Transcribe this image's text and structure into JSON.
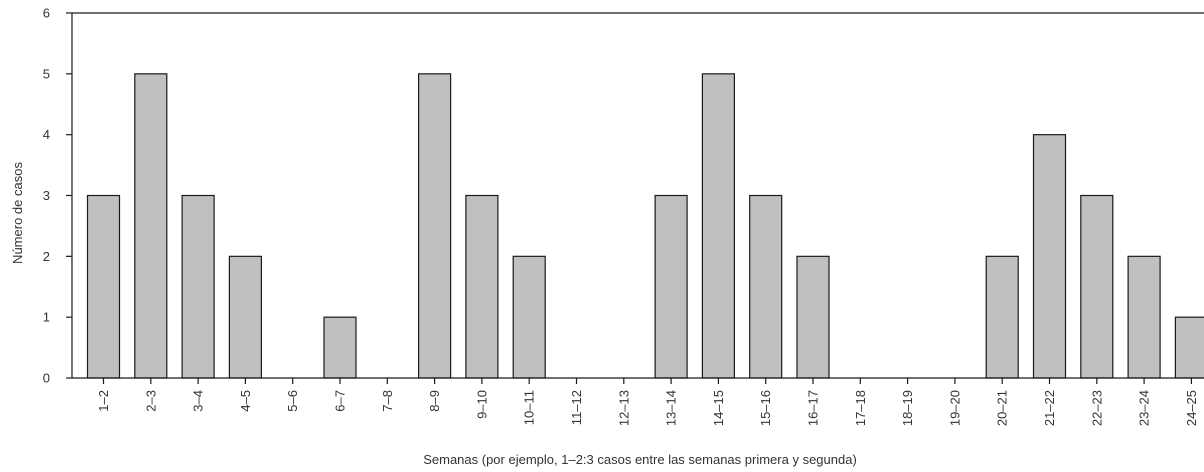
{
  "chart_data": {
    "type": "bar",
    "title": "",
    "xlabel": "Semanas (por ejemplo, 1–2:3 casos entre las semanas primera y segunda)",
    "ylabel": "Número de casos",
    "ylim": [
      0,
      6
    ],
    "yticks": [
      0,
      1,
      2,
      3,
      4,
      5,
      6
    ],
    "grid": false,
    "categories": [
      "1–2",
      "2–3",
      "3–4",
      "4–5",
      "5–6",
      "6–7",
      "7–8",
      "8–9",
      "9–10",
      "10–11",
      "11–12",
      "12–13",
      "13–14",
      "14–15",
      "15–16",
      "16–17",
      "17–18",
      "18–19",
      "19–20",
      "20–21",
      "21–22",
      "22–23",
      "23–24",
      "24–25"
    ],
    "values": [
      3,
      5,
      3,
      2,
      0,
      1,
      0,
      5,
      3,
      2,
      0,
      0,
      3,
      5,
      3,
      2,
      0,
      0,
      0,
      2,
      4,
      3,
      2,
      1
    ],
    "bar_color": "#c0c0c0",
    "bar_edge_color": "#1a1a1a"
  }
}
